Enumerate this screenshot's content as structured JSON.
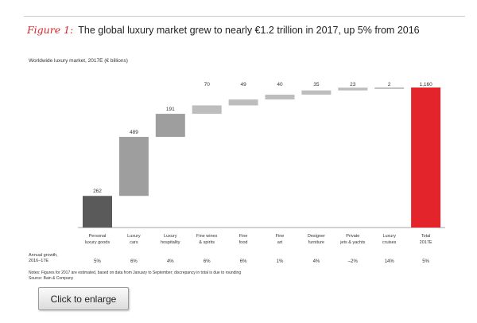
{
  "figure": {
    "label": "Figure 1:",
    "title": "The global luxury market grew to nearly €1.2 trillion in 2017, up 5% from 2016"
  },
  "notes": {
    "text": "Notes: Figures for 2017 are estimated, based on data from January to September; discrepancy in total is due to rounding",
    "source": "Source: Bain & Company"
  },
  "button": {
    "label": "Click to enlarge"
  },
  "colors": {
    "accent": "#e3252b",
    "dark_bar": "#5a5a5a",
    "mid_bar": "#9e9e9e",
    "light_bar": "#bdbdbd"
  },
  "chart_data": {
    "type": "waterfall",
    "title": "Worldwide luxury market, 2017E (€ billions)",
    "categories": [
      "Personal luxury goods",
      "Luxury cars",
      "Luxury hospitality",
      "Fine wines & spirits",
      "Fine food",
      "Fine art",
      "Designer furniture",
      "Private jets & yachts",
      "Luxury cruises",
      "Total 2017E"
    ],
    "category_lines": [
      [
        "Personal",
        "luxury goods"
      ],
      [
        "Luxury",
        "cars"
      ],
      [
        "Luxury",
        "hospitality"
      ],
      [
        "Fine wines",
        "& spirits"
      ],
      [
        "Fine",
        "food"
      ],
      [
        "Fine",
        "art"
      ],
      [
        "Designer",
        "furniture"
      ],
      [
        "Private",
        "jets & yachts"
      ],
      [
        "Luxury",
        "cruises"
      ],
      [
        "Total",
        "2017E"
      ]
    ],
    "values": [
      262,
      489,
      191,
      70,
      49,
      40,
      35,
      23,
      2,
      1160
    ],
    "value_labels": [
      "262",
      "489",
      "191",
      "70",
      "49",
      "40",
      "35",
      "23",
      "2",
      "1,160"
    ],
    "growth_label": [
      "Annual growth,",
      "2016–17E"
    ],
    "growth": [
      "5%",
      "6%",
      "4%",
      "6%",
      "6%",
      "1%",
      "4%",
      "–2%",
      "14%",
      "5%"
    ],
    "ylim": [
      0,
      1200
    ]
  }
}
